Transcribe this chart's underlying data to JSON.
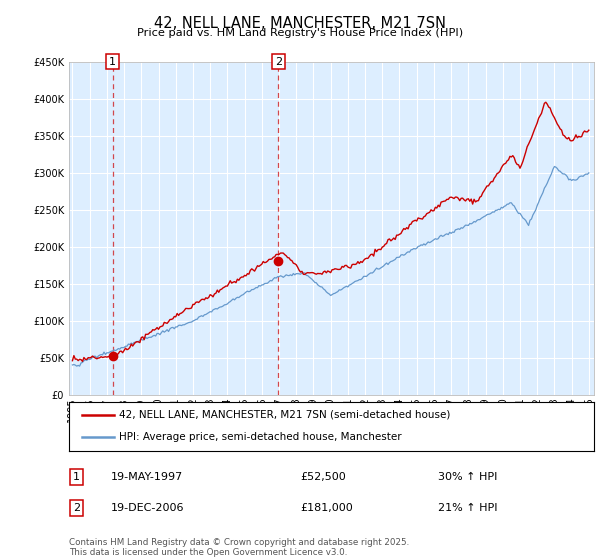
{
  "title": "42, NELL LANE, MANCHESTER, M21 7SN",
  "subtitle": "Price paid vs. HM Land Registry's House Price Index (HPI)",
  "red_label": "42, NELL LANE, MANCHESTER, M21 7SN (semi-detached house)",
  "blue_label": "HPI: Average price, semi-detached house, Manchester",
  "transaction1": {
    "num": "1",
    "date": "19-MAY-1997",
    "price": 52500,
    "hpi": "30% ↑ HPI"
  },
  "transaction2": {
    "num": "2",
    "date": "19-DEC-2006",
    "price": 181000,
    "hpi": "21% ↑ HPI"
  },
  "footnote": "Contains HM Land Registry data © Crown copyright and database right 2025.\nThis data is licensed under the Open Government Licence v3.0.",
  "red_color": "#cc0000",
  "blue_color": "#6699cc",
  "bg_color": "#ddeeff",
  "grid_color": "#ffffff",
  "ylim": [
    0,
    450000
  ],
  "yticks": [
    0,
    50000,
    100000,
    150000,
    200000,
    250000,
    300000,
    350000,
    400000,
    450000
  ],
  "x_start_year": 1995,
  "x_end_year": 2025,
  "t1_year": 1997.33,
  "t1_price": 52500,
  "t2_year": 2006.96,
  "t2_price": 181000
}
